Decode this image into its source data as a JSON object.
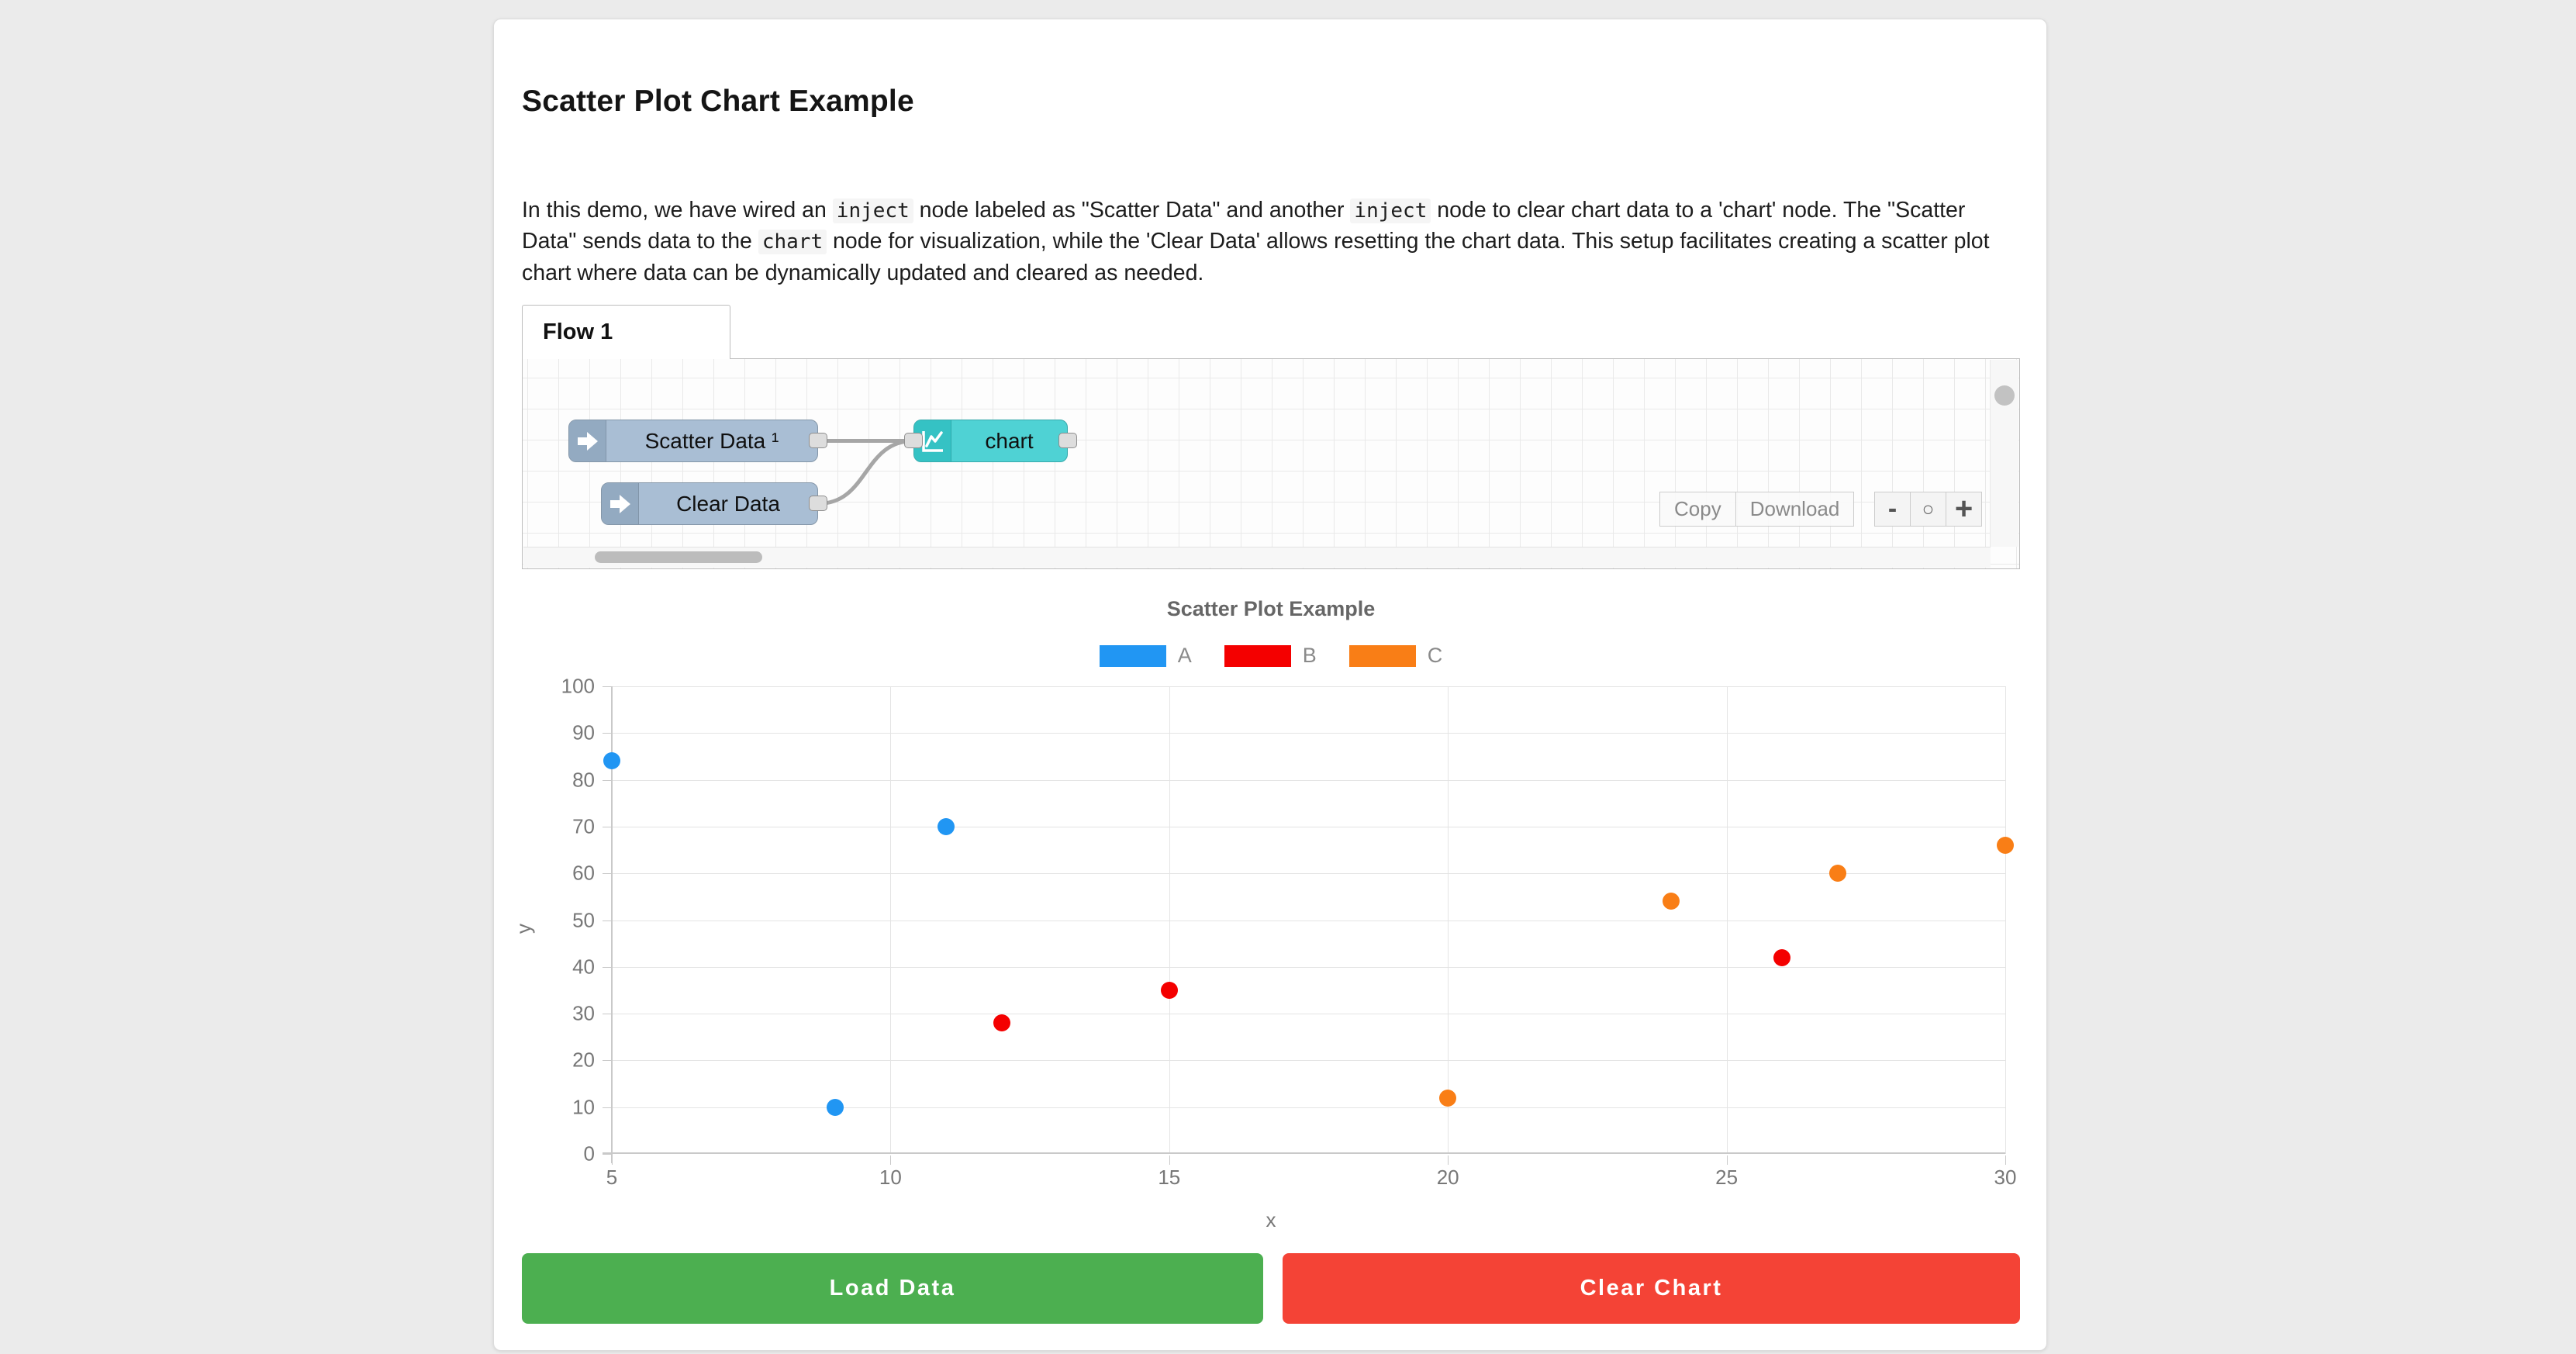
{
  "page": {
    "title": "Scatter Plot Chart Example"
  },
  "intro": {
    "segments": [
      "In this demo, we have wired an ",
      "inject",
      " node labeled as \"Scatter Data\" and another ",
      "inject",
      " node to clear chart data to a 'chart' node. The \"Scatter Data\" sends data to the ",
      "chart",
      " node for visualization, while the 'Clear Data' allows resetting the chart data. This setup facilitates creating a scatter plot chart where data can be dynamically updated and cleared as needed."
    ]
  },
  "flow": {
    "tab_label": "Flow 1",
    "nodes": {
      "scatter_inject": "Scatter Data ¹",
      "clear_inject": "Clear Data",
      "chart": "chart"
    },
    "toolbar": {
      "copy": "Copy",
      "download": "Download"
    },
    "zoom": {
      "out": "-",
      "reset": "○",
      "in": "+"
    }
  },
  "chart_data": {
    "type": "scatter",
    "title": "Scatter Plot Example",
    "xlabel": "x",
    "ylabel": "y",
    "xlim": [
      5,
      30
    ],
    "ylim": [
      0,
      100
    ],
    "xticks": [
      5,
      10,
      15,
      20,
      25,
      30
    ],
    "yticks": [
      0,
      10,
      20,
      30,
      40,
      50,
      60,
      70,
      80,
      90,
      100
    ],
    "grid": true,
    "legend_position": "top-center",
    "series": [
      {
        "name": "A",
        "color": "#2196f3",
        "points": [
          [
            5,
            84
          ],
          [
            9,
            10
          ],
          [
            11,
            70
          ]
        ]
      },
      {
        "name": "B",
        "color": "#f40000",
        "points": [
          [
            12,
            28
          ],
          [
            15,
            35
          ],
          [
            26,
            42
          ]
        ]
      },
      {
        "name": "C",
        "color": "#f97e16",
        "points": [
          [
            20,
            12
          ],
          [
            24,
            54
          ],
          [
            27,
            60
          ],
          [
            30,
            66
          ]
        ]
      }
    ]
  },
  "buttons": {
    "load": "Load Data",
    "clear": "Clear Chart"
  },
  "colors": {
    "load_button": "#4caf50",
    "clear_button": "#f44336",
    "inject_node": "#a9bed4",
    "chart_node": "#4fd2d4",
    "wire": "#a6a6a6"
  }
}
